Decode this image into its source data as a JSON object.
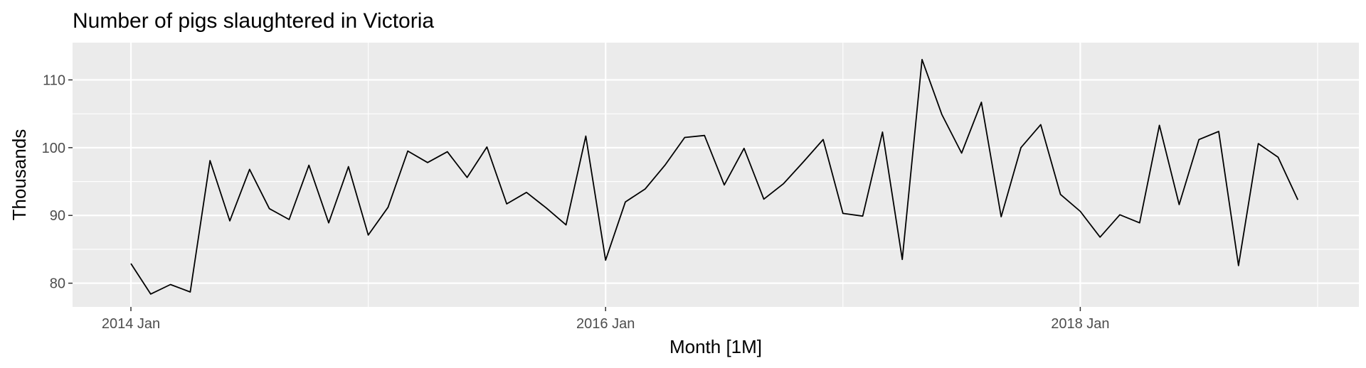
{
  "chart_data": {
    "type": "line",
    "title": "Number of pigs slaughtered in Victoria",
    "xlabel": "Month [1M]",
    "ylabel": "Thousands",
    "x_start": "2014 Jan",
    "x_tick_labels": [
      "2014 Jan",
      "2016 Jan",
      "2018 Jan"
    ],
    "y_ticks": [
      80,
      90,
      100,
      110
    ],
    "ylim": [
      76.5,
      115.5
    ],
    "grid": true,
    "background": "#ebebeb",
    "line_color": "#000000",
    "series": [
      {
        "x": [
          "2014 Jan",
          "2014 Feb",
          "2014 Mar",
          "2014 Apr",
          "2014 May",
          "2014 Jun",
          "2014 Jul",
          "2014 Aug",
          "2014 Sep",
          "2014 Oct",
          "2014 Nov",
          "2014 Dec",
          "2015 Jan",
          "2015 Feb",
          "2015 Mar",
          "2015 Apr",
          "2015 May",
          "2015 Jun",
          "2015 Jul",
          "2015 Aug",
          "2015 Sep",
          "2015 Oct",
          "2015 Nov",
          "2015 Dec",
          "2016 Jan",
          "2016 Feb",
          "2016 Mar",
          "2016 Apr",
          "2016 May",
          "2016 Jun",
          "2016 Jul",
          "2016 Aug",
          "2016 Sep",
          "2016 Oct",
          "2016 Nov",
          "2016 Dec",
          "2017 Jan",
          "2017 Feb",
          "2017 Mar",
          "2017 Apr",
          "2017 May",
          "2017 Jun",
          "2017 Jul",
          "2017 Aug",
          "2017 Sep",
          "2017 Oct",
          "2017 Nov",
          "2017 Dec",
          "2018 Jan",
          "2018 Feb",
          "2018 Mar",
          "2018 Apr",
          "2018 May",
          "2018 Jun",
          "2018 Jul",
          "2018 Aug",
          "2018 Sep",
          "2018 Oct",
          "2018 Nov",
          "2018 Dec"
        ],
        "values": [
          82.9,
          78.4,
          79.8,
          78.7,
          98.1,
          89.2,
          96.8,
          91.0,
          89.4,
          97.4,
          88.9,
          97.2,
          87.1,
          91.2,
          99.5,
          97.8,
          99.4,
          95.6,
          100.1,
          91.7,
          93.4,
          91.1,
          88.6,
          101.7,
          83.4,
          92.0,
          93.9,
          97.4,
          101.5,
          101.8,
          94.5,
          99.9,
          92.4,
          94.7,
          97.9,
          101.2,
          90.3,
          89.9,
          102.3,
          83.5,
          113.0,
          104.9,
          99.2,
          106.7,
          89.8,
          100.0,
          103.4,
          93.1,
          90.6,
          86.8,
          90.1,
          88.9,
          103.3,
          91.6,
          101.2,
          102.4,
          82.6,
          100.6,
          98.6,
          92.3
        ]
      }
    ]
  }
}
